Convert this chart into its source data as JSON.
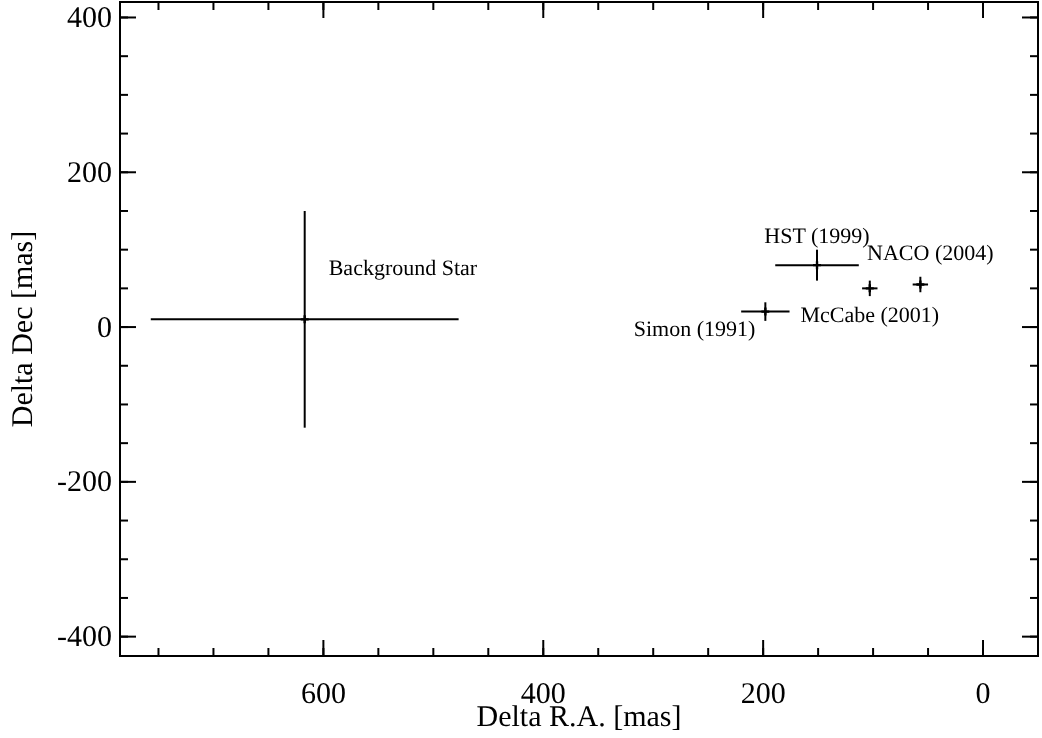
{
  "chart_data": {
    "type": "scatter",
    "xlabel": "Delta R.A. [mas]",
    "ylabel": "Delta Dec [mas]",
    "xlim": [
      785,
      -50
    ],
    "ylim": [
      -425,
      420
    ],
    "xticks": [
      600,
      400,
      200,
      0
    ],
    "yticks": [
      -400,
      -200,
      0,
      200,
      400
    ],
    "marker": "cross",
    "grid": false,
    "series": [
      {
        "color": "#000000",
        "x": [
          617,
          198,
          151,
          103,
          57
        ],
        "values": [
          10,
          20,
          80,
          50,
          55
        ],
        "xerrors": [
          140,
          22,
          38,
          7,
          7
        ],
        "errors": [
          140,
          12,
          20,
          10,
          10
        ]
      }
    ],
    "annotations": [
      {
        "text": "Background Star",
        "x": 617,
        "y": 10
      },
      {
        "text": "Simon (1991)",
        "x": 198,
        "y": 20
      },
      {
        "text": "HST (1999)",
        "x": 151,
        "y": 80
      },
      {
        "text": "McCabe (2001)",
        "x": 103,
        "y": 50
      },
      {
        "text": "NACO (2004)",
        "x": 57,
        "y": 55
      }
    ]
  }
}
